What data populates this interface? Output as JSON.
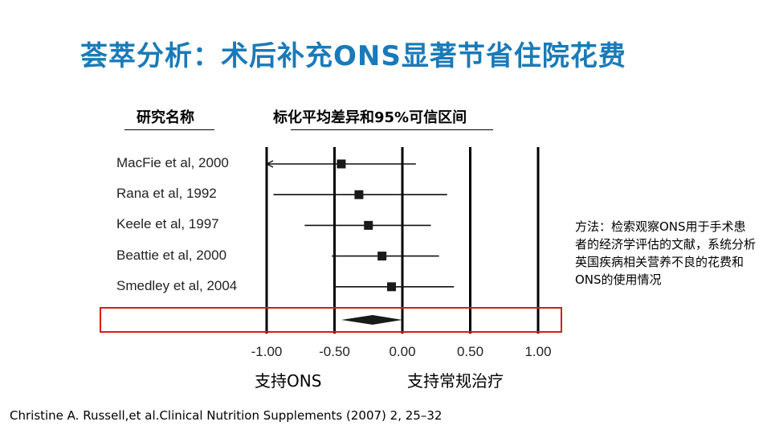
{
  "title": "荟萃分析：术后补充ONS显著节省住院花费",
  "headers": {
    "study": "研究名称",
    "effect": "标化平均差异和95%可信区间"
  },
  "side_note": "方法：检索观察ONS用于手术患者的经济学评估的文献，系统分析英国疾病相关营养不良的花费和ONS的使用情况",
  "favors": {
    "left": "支持ONS",
    "right": "支持常规治疗"
  },
  "citation": "Christine A. Russell,et al.Clinical Nutrition Supplements (2007) 2, 25–32",
  "colors": {
    "title": "#1a7ab8",
    "highlight_box": "#cc1f1f",
    "marker": "#1a1a1a"
  },
  "chart_data": {
    "type": "forest",
    "xlim": [
      -1.0,
      1.0
    ],
    "xticks": [
      -1.0,
      -0.5,
      0.0,
      0.5,
      1.0
    ],
    "xtick_labels": [
      "-1.00",
      "-0.50",
      "0.00",
      "0.50",
      "1.00"
    ],
    "studies": [
      {
        "name": "MacFie et al, 2000",
        "estimate": -0.45,
        "lower": -1.0,
        "upper": 0.1,
        "lower_truncated": true
      },
      {
        "name": "Rana et al, 1992",
        "estimate": -0.32,
        "lower": -0.95,
        "upper": 0.33
      },
      {
        "name": "Keele et al, 1997",
        "estimate": -0.25,
        "lower": -0.72,
        "upper": 0.21
      },
      {
        "name": "Beattie et al, 2000",
        "estimate": -0.15,
        "lower": -0.52,
        "upper": 0.27
      },
      {
        "name": "Smedley et al, 2004",
        "estimate": -0.08,
        "lower": -0.5,
        "upper": 0.38
      }
    ],
    "pooled": {
      "estimate": -0.22,
      "lower": -0.45,
      "upper": 0.0
    }
  }
}
